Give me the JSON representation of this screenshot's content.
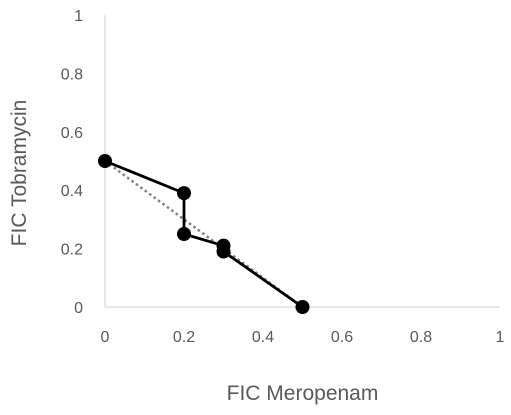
{
  "chart_data": {
    "type": "scatter",
    "xlabel": "FIC Meropenam",
    "ylabel": "FIC Tobramycin",
    "xlim": [
      0,
      1
    ],
    "ylim": [
      0,
      1
    ],
    "x_ticks": [
      "0",
      "0.2",
      "0.4",
      "0.6",
      "0.8",
      "1"
    ],
    "y_ticks": [
      "0",
      "0.2",
      "0.4",
      "0.6",
      "0.8",
      "1"
    ],
    "grid": false,
    "legend": "none",
    "series": [
      {
        "style": "solid-line-with-markers",
        "color": "#000000",
        "points": [
          {
            "x": 0,
            "y": 0.5
          },
          {
            "x": 0.2,
            "y": 0.39
          },
          {
            "x": 0.2,
            "y": 0.25
          },
          {
            "x": 0.3,
            "y": 0.21
          },
          {
            "x": 0.3,
            "y": 0.19
          },
          {
            "x": 0.5,
            "y": 0
          }
        ]
      },
      {
        "style": "dotted-line",
        "color": "#808080",
        "points": [
          {
            "x": 0,
            "y": 0.5
          },
          {
            "x": 0.5,
            "y": 0
          }
        ]
      }
    ]
  }
}
